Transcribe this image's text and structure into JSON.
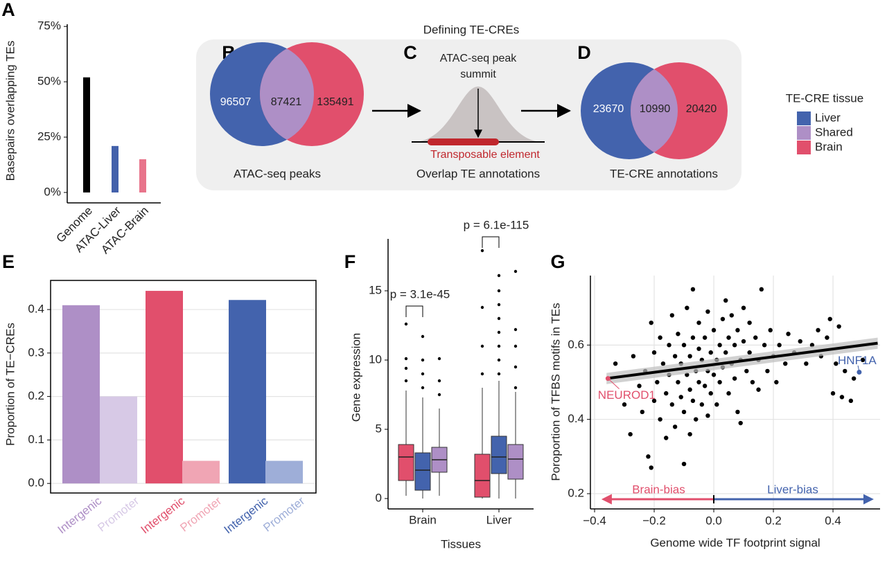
{
  "chart_data": [
    {
      "type": "bar",
      "panel": "A",
      "y_label": "Basepairs overlapping TEs",
      "categories": [
        "Genome",
        "ATAC-Liver",
        "ATAC-Brain"
      ],
      "values": [
        52,
        21,
        15
      ],
      "colors": [
        "#000000",
        "#4361ab",
        "#e8748b"
      ],
      "ylim": [
        -4.7,
        76
      ],
      "yticks": [
        {
          "value": 0,
          "label": "0%"
        },
        {
          "value": 25,
          "label": "25%"
        },
        {
          "value": 50,
          "label": "50%"
        },
        {
          "value": 75,
          "label": "75%"
        }
      ],
      "grid": false
    },
    {
      "type": "bar",
      "panel": "E",
      "y_label": "Proportion of TE−CREs",
      "categories": [
        "Intergenic",
        "Promoter",
        "Intergenic",
        "Promoter",
        "Intergenic",
        "Promoter"
      ],
      "values": [
        0.41,
        0.2,
        0.443,
        0.052,
        0.422,
        0.052
      ],
      "colors": [
        "#ae8fc6",
        "#d7c9e6",
        "#e14f6c",
        "#f0a5b4",
        "#4363ad",
        "#9eaed8"
      ],
      "ylim": [
        -0.022,
        0.467
      ],
      "yticks": [
        {
          "value": 0,
          "label": "0.0"
        },
        0.1,
        0.2,
        0.3,
        0.4
      ],
      "grid": true
    },
    {
      "type": "box",
      "panel": "F",
      "y_label": "Gene expression",
      "x_label": "Tissues",
      "categories": [
        "Brain",
        "Liver"
      ],
      "series": [
        {
          "color": "#e14f6c",
          "whisker_low": [
            0.2,
            0
          ],
          "q1": [
            1.3,
            0.1
          ],
          "median": [
            3.0,
            1.3
          ],
          "q3": [
            3.9,
            3.2
          ],
          "whisker_high": [
            7.8,
            8.0
          ],
          "outliers": [
            [
              8.5,
              9.4,
              10.1,
              12.6
            ],
            [
              9.0,
              11.0,
              13.8,
              17.9
            ]
          ]
        },
        {
          "color": "#4363ad",
          "whisker_low": [
            0,
            0
          ],
          "q1": [
            0.6,
            1.8
          ],
          "median": [
            2.05,
            3.0
          ],
          "q3": [
            3.3,
            4.5
          ],
          "whisker_high": [
            7.3,
            8.5
          ],
          "outliers": [
            [
              8.0,
              9.0,
              10.0,
              11.7
            ],
            [
              9.0,
              10.0,
              11.0,
              12.0,
              13.0,
              14.0,
              15.0,
              16.1
            ]
          ]
        },
        {
          "color": "#ae8fc6",
          "whisker_low": [
            0.2,
            0
          ],
          "q1": [
            1.9,
            1.4
          ],
          "median": [
            2.8,
            2.85
          ],
          "q3": [
            3.7,
            3.9
          ],
          "whisker_high": [
            6.5,
            7.7
          ],
          "outliers": [
            [
              7.5,
              8.5,
              10.1
            ],
            [
              8.0,
              9.5,
              11.0,
              12.2,
              16.4
            ]
          ]
        }
      ],
      "comparisons": [
        "p = 3.1e-45",
        "p = 6.1e-115"
      ],
      "ylim": [
        -0.75,
        18.75
      ],
      "yticks": [
        0,
        5,
        10,
        15
      ]
    },
    {
      "type": "scatter",
      "panel": "G",
      "y_label": "Poroportion of TFBS motifs in TEs",
      "x_label": "Genome wide TF footprint signal",
      "x": [
        -0.33,
        -0.3,
        -0.28,
        -0.27,
        -0.25,
        -0.24,
        -0.23,
        -0.22,
        -0.21,
        -0.21,
        -0.2,
        -0.2,
        -0.19,
        -0.18,
        -0.18,
        -0.17,
        -0.16,
        -0.16,
        -0.15,
        -0.15,
        -0.14,
        -0.14,
        -0.13,
        -0.13,
        -0.12,
        -0.12,
        -0.11,
        -0.11,
        -0.1,
        -0.1,
        -0.1,
        -0.09,
        -0.09,
        -0.08,
        -0.08,
        -0.08,
        -0.07,
        -0.07,
        -0.07,
        -0.06,
        -0.06,
        -0.05,
        -0.05,
        -0.05,
        -0.04,
        -0.04,
        -0.03,
        -0.03,
        -0.02,
        -0.02,
        -0.02,
        -0.01,
        -0.01,
        0.0,
        0.0,
        0.01,
        0.01,
        0.02,
        0.02,
        0.03,
        0.03,
        0.04,
        0.04,
        0.05,
        0.05,
        0.06,
        0.06,
        0.07,
        0.07,
        0.08,
        0.08,
        0.09,
        0.09,
        0.1,
        0.1,
        0.11,
        0.12,
        0.12,
        0.13,
        0.14,
        0.15,
        0.15,
        0.16,
        0.17,
        0.18,
        0.19,
        0.2,
        0.21,
        0.22,
        0.24,
        0.25,
        0.27,
        0.29,
        0.31,
        0.33,
        0.35,
        0.36,
        0.38,
        0.39,
        0.4,
        0.41,
        0.42,
        0.43,
        0.44,
        0.46,
        0.47,
        0.5
      ],
      "y": [
        0.55,
        0.44,
        0.36,
        0.57,
        0.49,
        0.42,
        0.53,
        0.3,
        0.66,
        0.27,
        0.58,
        0.45,
        0.5,
        0.62,
        0.4,
        0.55,
        0.47,
        0.35,
        0.6,
        0.52,
        0.44,
        0.68,
        0.57,
        0.38,
        0.5,
        0.63,
        0.46,
        0.55,
        0.42,
        0.6,
        0.28,
        0.52,
        0.7,
        0.48,
        0.57,
        0.36,
        0.75,
        0.62,
        0.45,
        0.53,
        0.4,
        0.59,
        0.5,
        0.66,
        0.44,
        0.56,
        0.62,
        0.49,
        0.53,
        0.69,
        0.41,
        0.58,
        0.47,
        0.64,
        0.52,
        0.56,
        0.44,
        0.6,
        0.5,
        0.67,
        0.54,
        0.72,
        0.58,
        0.47,
        0.62,
        0.55,
        0.68,
        0.51,
        0.6,
        0.42,
        0.64,
        0.56,
        0.39,
        0.61,
        0.7,
        0.53,
        0.58,
        0.66,
        0.5,
        0.62,
        0.56,
        0.48,
        0.75,
        0.6,
        0.53,
        0.64,
        0.57,
        0.5,
        0.6,
        0.55,
        0.63,
        0.58,
        0.61,
        0.55,
        0.6,
        0.64,
        0.57,
        0.62,
        0.67,
        0.47,
        0.55,
        0.65,
        0.46,
        0.53,
        0.45,
        0.51,
        0.56
      ],
      "fit": {
        "x": [
          -0.36,
          0.55
        ],
        "y": [
          0.51,
          0.605
        ],
        "lower": [
          0.495,
          0.59
        ],
        "upper": [
          0.525,
          0.62
        ]
      },
      "highlights": [
        {
          "label": "NEUROD1",
          "x": -0.355,
          "y": 0.51,
          "color": "#e14f6c"
        },
        {
          "label": "HNF1A",
          "x": 0.488,
          "y": 0.527,
          "color": "#4363ad"
        }
      ],
      "bias_arrows": [
        {
          "label": "Brain-bias",
          "from": 0,
          "to": -0.37,
          "y": 0.185,
          "color": "#e14f6c"
        },
        {
          "label": "Liver-bias",
          "from": 0,
          "to": 0.53,
          "y": 0.185,
          "color": "#4363ad"
        }
      ],
      "xlim": [
        -0.414,
        0.558
      ],
      "xticks": [
        {
          "value": -0.4,
          "label": "−0.4"
        },
        {
          "value": -0.2,
          "label": "−0.2"
        },
        {
          "value": 0,
          "label": "0.0"
        },
        0.2,
        0.4
      ],
      "ylim": [
        0.159,
        0.787
      ],
      "yticks": [
        0.2,
        0.4,
        0.6
      ],
      "grid": true
    }
  ],
  "diagram": {
    "title": "Defining TE-CREs",
    "panels": [
      {
        "letter": "B",
        "caption": "ATAC-seq peaks",
        "counts": [
          96507,
          87421,
          135491
        ]
      },
      {
        "letter": "C",
        "caption": "Overlap TE annotations",
        "summit": [
          "ATAC-seq peak",
          "summit"
        ],
        "element": "Transposable element"
      },
      {
        "letter": "D",
        "caption": "TE-CRE annotations",
        "counts": [
          23670,
          10990,
          20420
        ]
      }
    ]
  },
  "legend": {
    "title": "TE-CRE tissue",
    "items": [
      {
        "label": "Liver",
        "color": "#4363ad"
      },
      {
        "label": "Shared",
        "color": "#ae8fc6"
      },
      {
        "label": "Brain",
        "color": "#e14f6c"
      }
    ]
  }
}
